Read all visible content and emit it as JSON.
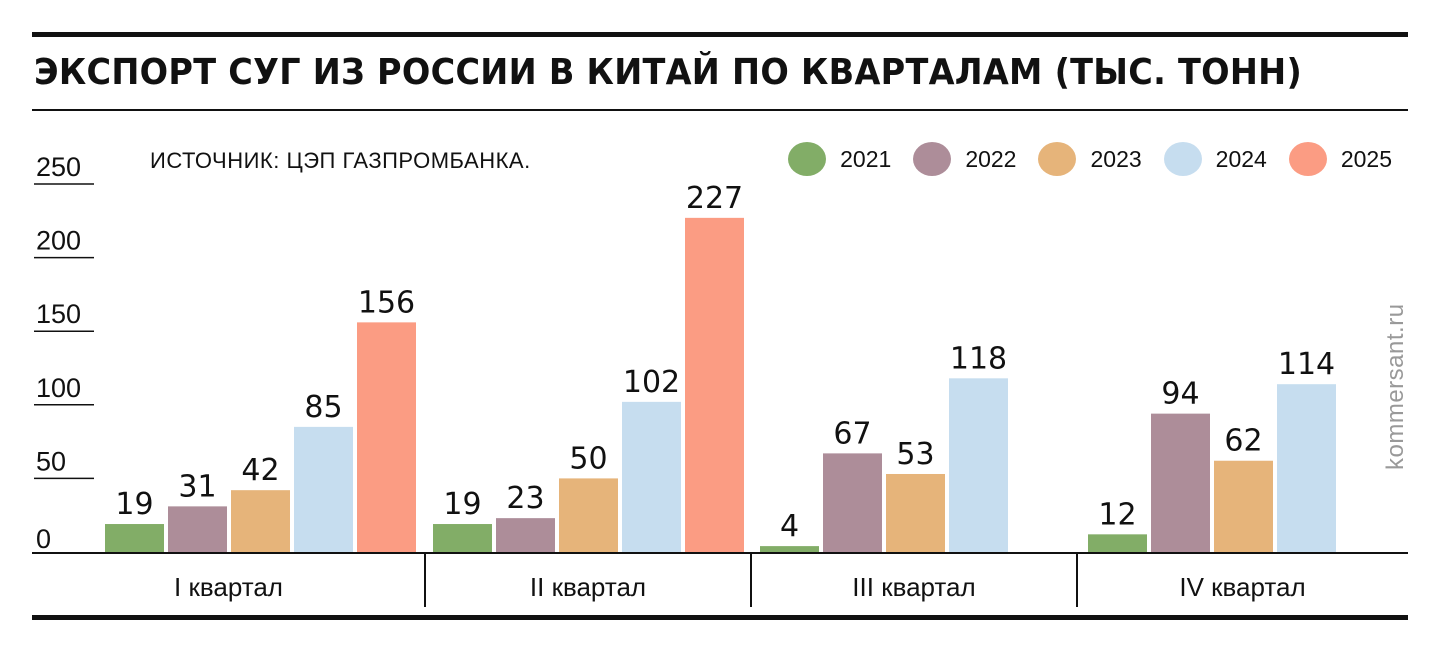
{
  "title": "ЭКСПОРТ СУГ ИЗ РОССИИ В КИТАЙ ПО КВАРТАЛАМ (ТЫС. ТОНН)",
  "source": "ИСТОЧНИК: ЦЭП ГАЗПРОМБАНКА.",
  "watermark": "kommersant.ru",
  "legend": [
    {
      "label": "2021",
      "color": "#82ad67"
    },
    {
      "label": "2022",
      "color": "#ad8d99"
    },
    {
      "label": "2023",
      "color": "#e6b47a"
    },
    {
      "label": "2024",
      "color": "#c6ddef"
    },
    {
      "label": "2025",
      "color": "#fb9c83"
    }
  ],
  "chart_data": {
    "type": "bar",
    "title": "ЭКСПОРТ СУГ ИЗ РОССИИ В КИТАЙ ПО КВАРТАЛАМ (ТЫС. ТОНН)",
    "categories": [
      "I квартал",
      "II квартал",
      "III квартал",
      "IV квартал"
    ],
    "series": [
      {
        "name": "2021",
        "color": "#82ad67",
        "values": [
          19,
          19,
          4,
          12
        ]
      },
      {
        "name": "2022",
        "color": "#ad8d99",
        "values": [
          31,
          23,
          67,
          94
        ]
      },
      {
        "name": "2023",
        "color": "#e6b47a",
        "values": [
          42,
          50,
          53,
          62
        ]
      },
      {
        "name": "2024",
        "color": "#c6ddef",
        "values": [
          85,
          102,
          118,
          114
        ]
      },
      {
        "name": "2025",
        "color": "#fb9c83",
        "values": [
          156,
          227,
          null,
          null
        ]
      }
    ],
    "yticks": [
      0,
      50,
      100,
      150,
      200,
      250
    ],
    "ylim": [
      0,
      250
    ],
    "grid": false,
    "legend_position": "top-right"
  }
}
